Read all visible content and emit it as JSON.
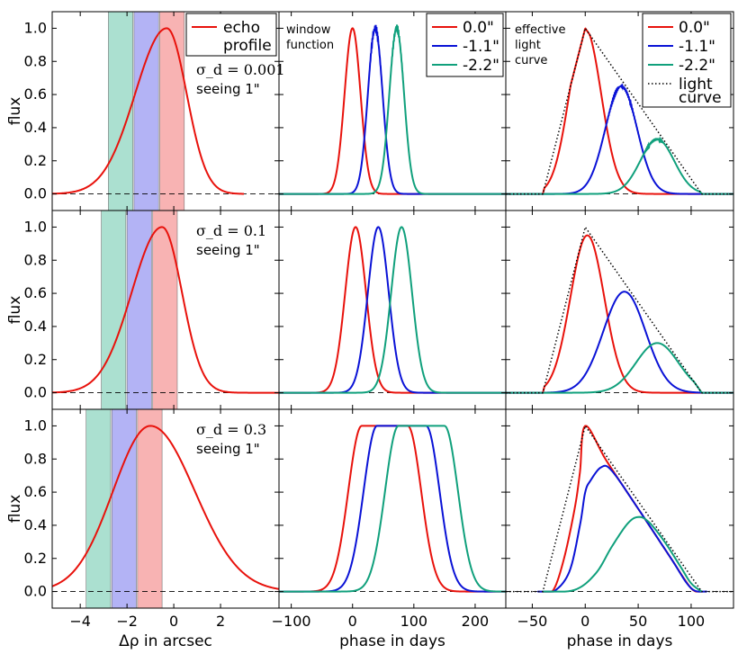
{
  "chart_data": {
    "type": "line",
    "title": "",
    "grid": "3x3 panels",
    "colors": {
      "red": "#e8120c",
      "blue": "#0a12d6",
      "green": "#10a07c",
      "lightcurve": "#000000",
      "green_band": "#8fd6c0",
      "blue_band": "#9a9af2",
      "red_band": "#f59a9a"
    },
    "columns": [
      {
        "xlabel": "Δρ in arcsec",
        "xlim": [
          -5.2,
          4.5
        ],
        "xticks": [
          -4,
          -2,
          0,
          2
        ],
        "xticklabels": [
          "−4",
          "−2",
          "0",
          "2"
        ]
      },
      {
        "xlabel": "phase in days",
        "xlim": [
          -120,
          250
        ],
        "xticks": [
          -100,
          0,
          100,
          200
        ],
        "xticklabels": [
          "−100",
          "0",
          "100",
          "200"
        ]
      },
      {
        "xlabel": "phase in days",
        "xlim": [
          -75,
          140
        ],
        "xticks": [
          -50,
          0,
          50,
          100
        ],
        "xticklabels": [
          "−50",
          "0",
          "50",
          "100"
        ]
      }
    ],
    "ylabel": "flux",
    "ylim": [
      -0.1,
      1.1
    ],
    "yticks": [
      0.0,
      0.2,
      0.4,
      0.6,
      0.8,
      1.0
    ],
    "yticklabels": [
      "0.0",
      "0.2",
      "0.4",
      "0.6",
      "0.8",
      "1.0"
    ],
    "zero_line": "dashed at flux 0",
    "rows": [
      {
        "sigma_label": "σ_d = 0.001",
        "seeing_label": "seeing 1\"",
        "echo_profile": {
          "peak_x": -0.3,
          "sigma_left": 1.35,
          "sigma_right": 0.85,
          "x_from": -5.2,
          "x_to": 3.0
        },
        "bands_arcsec": [
          {
            "color": "green",
            "from": -2.8,
            "to": -1.75
          },
          {
            "color": "blue",
            "from": -1.7,
            "to": -0.65
          },
          {
            "color": "red",
            "from": -0.6,
            "to": 0.45
          }
        ],
        "window_peaks_days": [
          0,
          37,
          72
        ],
        "window_sigma_days": [
          13,
          12,
          12
        ],
        "window_noise": true,
        "effective_peaks_days": [
          0,
          34,
          68
        ],
        "effective_peak_values": [
          1.0,
          0.65,
          0.33
        ],
        "effective_sigma_days": [
          15,
          15,
          16
        ]
      },
      {
        "sigma_label": "σ_d = 0.1",
        "seeing_label": "seeing 1\"",
        "echo_profile": {
          "peak_x": -0.5,
          "sigma_left": 1.3,
          "sigma_right": 0.85,
          "x_from": -5.2,
          "x_to": 4.5
        },
        "bands_arcsec": [
          {
            "color": "green",
            "from": -3.1,
            "to": -2.05
          },
          {
            "color": "blue",
            "from": -2.0,
            "to": -0.95
          },
          {
            "color": "red",
            "from": -0.9,
            "to": 0.15
          }
        ],
        "window_peaks_days": [
          5,
          42,
          80
        ],
        "window_sigma_days": [
          17,
          17,
          17
        ],
        "window_noise": false,
        "effective_peaks_days": [
          2,
          37,
          68
        ],
        "effective_peak_values": [
          0.95,
          0.61,
          0.3
        ],
        "effective_sigma_days": [
          16,
          20,
          20
        ]
      },
      {
        "sigma_label": "σ_d = 0.3",
        "seeing_label": "seeing 1\"",
        "echo_profile": {
          "peak_x": -1.0,
          "sigma_left": 1.6,
          "sigma_right": 1.9,
          "x_from": -5.2,
          "x_to": 4.5
        },
        "bands_arcsec": [
          {
            "color": "green",
            "from": -3.75,
            "to": -2.7
          },
          {
            "color": "blue",
            "from": -2.65,
            "to": -1.6
          },
          {
            "color": "red",
            "from": -1.55,
            "to": -0.5
          }
        ],
        "window_plateaus_days": [
          [
            15,
            90
          ],
          [
            40,
            120
          ],
          [
            75,
            150
          ]
        ],
        "window_edge_sigma_days": 22,
        "effective_curves_days": [
          {
            "color": "red",
            "points": [
              [
                -40,
                0
              ],
              [
                -30,
                0.01
              ],
              [
                -20,
                0.2
              ],
              [
                -10,
                0.5
              ],
              [
                -5,
                0.72
              ],
              [
                0,
                1.0
              ],
              [
                20,
                0.79
              ],
              [
                50,
                0.5
              ],
              [
                80,
                0.21
              ],
              [
                100,
                0.02
              ],
              [
                110,
                0
              ]
            ]
          },
          {
            "color": "blue",
            "points": [
              [
                -45,
                0
              ],
              [
                -30,
                0.0
              ],
              [
                -15,
                0.12
              ],
              [
                -5,
                0.4
              ],
              [
                0,
                0.6
              ],
              [
                5,
                0.67
              ],
              [
                15,
                0.75
              ],
              [
                25,
                0.73
              ],
              [
                50,
                0.5
              ],
              [
                80,
                0.21
              ],
              [
                100,
                0.02
              ],
              [
                115,
                0
              ]
            ]
          },
          {
            "color": "green",
            "points": [
              [
                -40,
                0
              ],
              [
                -10,
                0.01
              ],
              [
                10,
                0.11
              ],
              [
                25,
                0.27
              ],
              [
                40,
                0.41
              ],
              [
                50,
                0.45
              ],
              [
                60,
                0.42
              ],
              [
                75,
                0.3
              ],
              [
                90,
                0.15
              ],
              [
                100,
                0.05
              ],
              [
                110,
                0
              ]
            ]
          }
        ]
      }
    ],
    "light_curve": {
      "rise_from_day": -40,
      "peak_day": 0,
      "end_day": 110,
      "peak": 1.0
    },
    "legend_col1": {
      "entries": [
        {
          "color": "red",
          "label": "echo"
        }
      ],
      "continuation": "profile",
      "placement": "top-right"
    },
    "legend_col2": {
      "entries": [
        {
          "color": "red",
          "label": "0.0\""
        },
        {
          "color": "blue",
          "label": "-1.1\""
        },
        {
          "color": "green",
          "label": "-2.2\""
        }
      ],
      "placement": "top-right"
    },
    "legend_col3": {
      "entries": [
        {
          "color": "red",
          "label": "0.0\""
        },
        {
          "color": "blue",
          "label": "-1.1\""
        },
        {
          "color": "green",
          "label": "-2.2\""
        },
        {
          "color": "lightcurve",
          "label": "light",
          "dotted": true
        }
      ],
      "continuation": "curve",
      "placement": "top-right"
    },
    "annotations": {
      "col2_row1": [
        "window",
        "function"
      ],
      "col3_row1": [
        "effective",
        "light",
        "curve"
      ]
    }
  }
}
